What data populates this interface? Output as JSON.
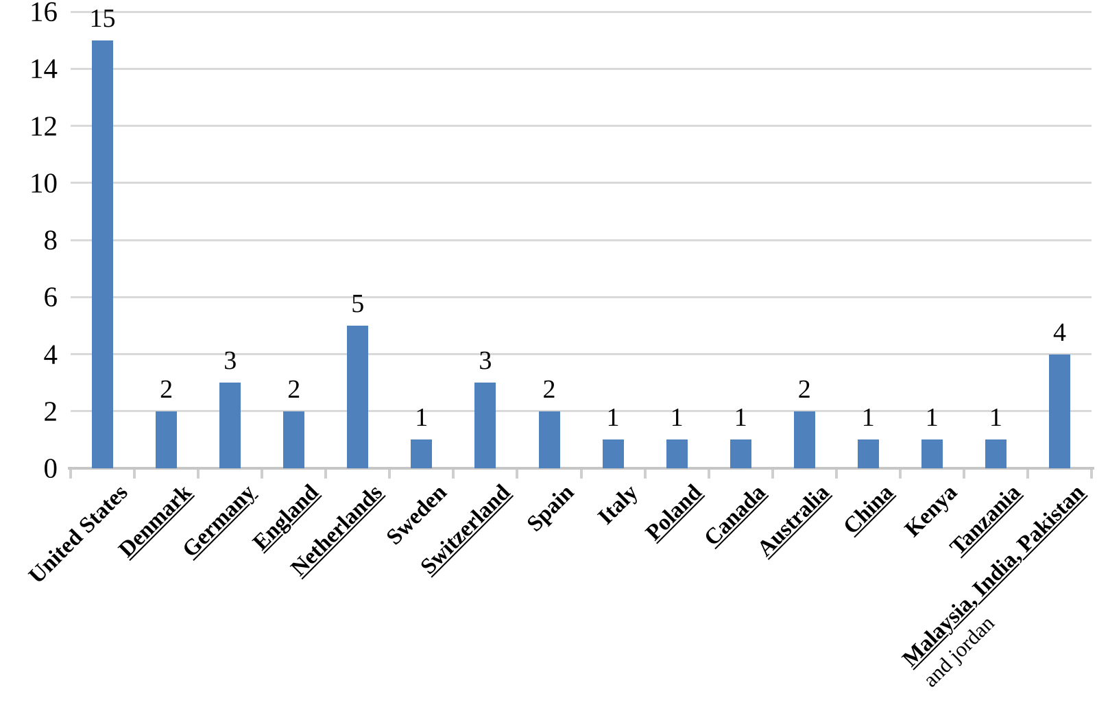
{
  "chart_data": {
    "type": "bar",
    "title": "",
    "xlabel": "",
    "ylabel": "",
    "ylim": [
      0,
      16
    ],
    "yticks": [
      0,
      2,
      4,
      6,
      8,
      10,
      12,
      14,
      16
    ],
    "grid": true,
    "legend": false,
    "categories": [
      {
        "label": "United States",
        "underline": false
      },
      {
        "label": "Denmark",
        "underline": true
      },
      {
        "label": "Germany",
        "underline": true
      },
      {
        "label": "England",
        "underline": true
      },
      {
        "label": "Netherlands",
        "underline": true
      },
      {
        "label": "Sweden",
        "underline": false
      },
      {
        "label": "Switzerland",
        "underline": true
      },
      {
        "label": "Spain",
        "underline": false
      },
      {
        "label": "Italy",
        "underline": false
      },
      {
        "label": "Poland",
        "underline": true
      },
      {
        "label": "Canada",
        "underline": true
      },
      {
        "label": "Australia",
        "underline": true
      },
      {
        "label": "China",
        "underline": true
      },
      {
        "label": "Kenya",
        "underline": false
      },
      {
        "label": "Tanzania",
        "underline": true
      },
      {
        "label": "Malaysia, India, Pakistan",
        "label2": "and jordan",
        "underline": true
      }
    ],
    "values": [
      15,
      2,
      3,
      2,
      5,
      1,
      3,
      2,
      1,
      1,
      1,
      2,
      1,
      1,
      1,
      4
    ],
    "bar_labels": [
      "15",
      "2",
      "3",
      "2",
      "5",
      "1",
      "3",
      "2",
      "1",
      "1",
      "1",
      "2",
      "1",
      "1",
      "1",
      "4"
    ],
    "colors": {
      "bar": "#4f81bd",
      "gridline": "#d9d9d9",
      "axis": "#c6c6c6",
      "tick": "#cfcfcf",
      "text": "#000000"
    }
  }
}
